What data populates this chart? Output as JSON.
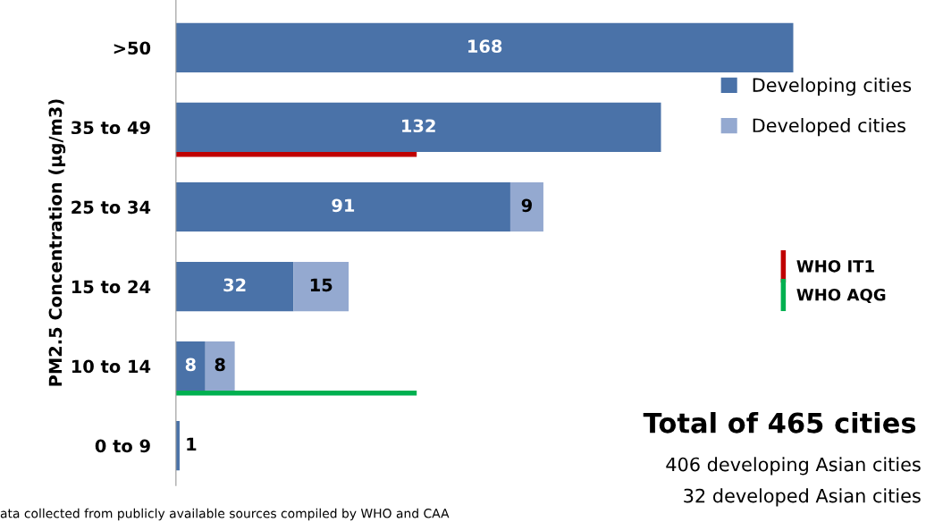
{
  "chart_data": {
    "type": "bar",
    "orientation": "horizontal",
    "stacked": true,
    "ylabel": "PM2.5 Concentration (µg/m3)",
    "categories": [
      ">50",
      "35 to 49",
      "25 to 34",
      "15 to 24",
      "10 to 14",
      "0 to 9"
    ],
    "series": [
      {
        "name": "Developing cities",
        "color": "#4a72a8",
        "values": [
          168,
          132,
          91,
          32,
          8,
          1
        ],
        "value_labels": [
          "168",
          "132",
          "91",
          "32",
          "8",
          "1"
        ]
      },
      {
        "name": "Developed cities",
        "color": "#94a9d0",
        "values": [
          null,
          null,
          9,
          15,
          8,
          null
        ],
        "value_labels": [
          null,
          null,
          "9",
          "15",
          "8",
          null
        ]
      }
    ],
    "ref_lines": [
      {
        "axis": "y",
        "value": "35 to 49",
        "label": "WHO IT1",
        "color": "#c00000"
      },
      {
        "axis": "y",
        "value": "10 to 14",
        "label": "WHO AQG",
        "color": "#00b050"
      }
    ],
    "legend": "right",
    "grid": false,
    "tick_labels": "y",
    "annotations": [
      "Total of 465 cities",
      "406 developing Asian cities",
      "32 developed Asian cities",
      "ata collected from publicly available sources compiled by WHO and CAA"
    ]
  }
}
